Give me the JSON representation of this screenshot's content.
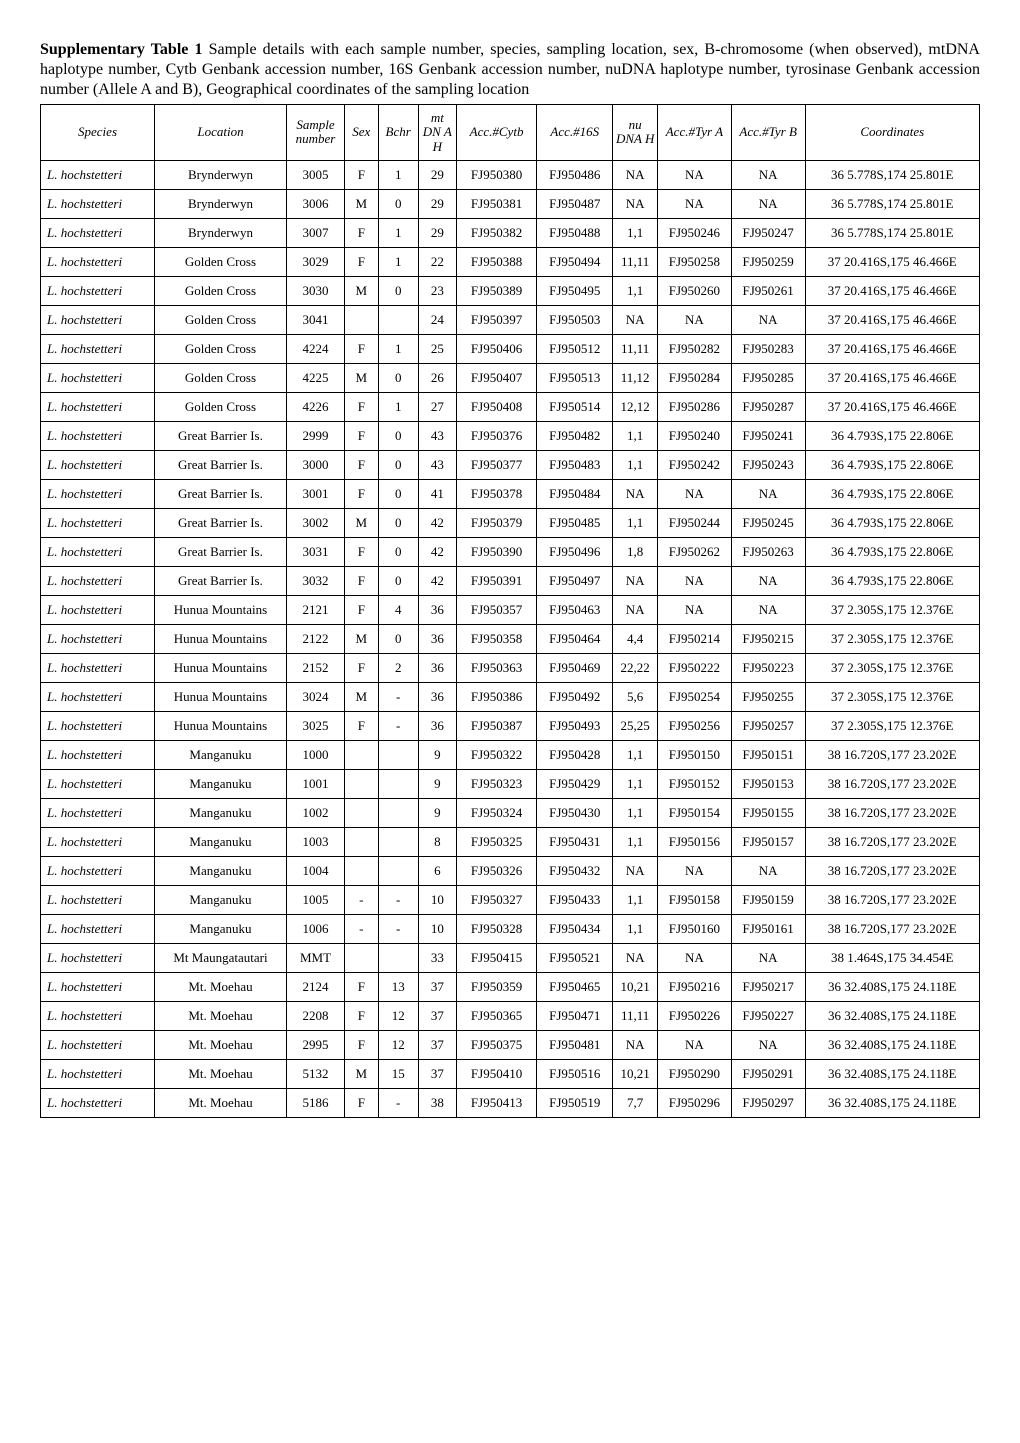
{
  "caption": {
    "title": "Supplementary Table 1",
    "body": " Sample details with each sample number, species, sampling location, sex, B-chromosome (when observed), mtDNA haplotype number, Cytb Genbank accession number, 16S Genbank accession number, nuDNA haplotype number, tyrosinase Genbank accession number (Allele A and B), Geographical coordinates of the sampling location"
  },
  "columns": [
    "Species",
    "Location",
    "Sample number",
    "Sex",
    "Bchr",
    "mt DN A H",
    "Acc.#Cytb",
    "Acc.#16S",
    "nu DNA H",
    "Acc.#Tyr A",
    "Acc.#Tyr B",
    "Coordinates"
  ],
  "rows": [
    [
      "L. hochstetteri",
      "Brynderwyn",
      "3005",
      "F",
      "1",
      "29",
      "FJ950380",
      "FJ950486",
      "NA",
      "NA",
      "NA",
      "36 5.778S,174 25.801E"
    ],
    [
      "L. hochstetteri",
      "Brynderwyn",
      "3006",
      "M",
      "0",
      "29",
      "FJ950381",
      "FJ950487",
      "NA",
      "NA",
      "NA",
      "36 5.778S,174 25.801E"
    ],
    [
      "L. hochstetteri",
      "Brynderwyn",
      "3007",
      "F",
      "1",
      "29",
      "FJ950382",
      "FJ950488",
      "1,1",
      "FJ950246",
      "FJ950247",
      "36 5.778S,174 25.801E"
    ],
    [
      "L. hochstetteri",
      "Golden Cross",
      "3029",
      "F",
      "1",
      "22",
      "FJ950388",
      "FJ950494",
      "11,11",
      "FJ950258",
      "FJ950259",
      "37 20.416S,175 46.466E"
    ],
    [
      "L. hochstetteri",
      "Golden Cross",
      "3030",
      "M",
      "0",
      "23",
      "FJ950389",
      "FJ950495",
      "1,1",
      "FJ950260",
      "FJ950261",
      "37 20.416S,175 46.466E"
    ],
    [
      "L. hochstetteri",
      "Golden Cross",
      "3041",
      "",
      "",
      "24",
      "FJ950397",
      "FJ950503",
      "NA",
      "NA",
      "NA",
      "37 20.416S,175 46.466E"
    ],
    [
      "L. hochstetteri",
      "Golden Cross",
      "4224",
      "F",
      "1",
      "25",
      "FJ950406",
      "FJ950512",
      "11,11",
      "FJ950282",
      "FJ950283",
      "37 20.416S,175 46.466E"
    ],
    [
      "L. hochstetteri",
      "Golden Cross",
      "4225",
      "M",
      "0",
      "26",
      "FJ950407",
      "FJ950513",
      "11,12",
      "FJ950284",
      "FJ950285",
      "37 20.416S,175 46.466E"
    ],
    [
      "L. hochstetteri",
      "Golden Cross",
      "4226",
      "F",
      "1",
      "27",
      "FJ950408",
      "FJ950514",
      "12,12",
      "FJ950286",
      "FJ950287",
      "37 20.416S,175 46.466E"
    ],
    [
      "L. hochstetteri",
      "Great Barrier Is.",
      "2999",
      "F",
      "0",
      "43",
      "FJ950376",
      "FJ950482",
      "1,1",
      "FJ950240",
      "FJ950241",
      "36 4.793S,175 22.806E"
    ],
    [
      "L. hochstetteri",
      "Great Barrier Is.",
      "3000",
      "F",
      "0",
      "43",
      "FJ950377",
      "FJ950483",
      "1,1",
      "FJ950242",
      "FJ950243",
      "36 4.793S,175 22.806E"
    ],
    [
      "L. hochstetteri",
      "Great Barrier Is.",
      "3001",
      "F",
      "0",
      "41",
      "FJ950378",
      "FJ950484",
      "NA",
      "NA",
      "NA",
      "36 4.793S,175 22.806E"
    ],
    [
      "L. hochstetteri",
      "Great Barrier Is.",
      "3002",
      "M",
      "0",
      "42",
      "FJ950379",
      "FJ950485",
      "1,1",
      "FJ950244",
      "FJ950245",
      "36 4.793S,175 22.806E"
    ],
    [
      "L. hochstetteri",
      "Great Barrier Is.",
      "3031",
      "F",
      "0",
      "42",
      "FJ950390",
      "FJ950496",
      "1,8",
      "FJ950262",
      "FJ950263",
      "36 4.793S,175 22.806E"
    ],
    [
      "L. hochstetteri",
      "Great Barrier Is.",
      "3032",
      "F",
      "0",
      "42",
      "FJ950391",
      "FJ950497",
      "NA",
      "NA",
      "NA",
      "36 4.793S,175 22.806E"
    ],
    [
      "L. hochstetteri",
      "Hunua Mountains",
      "2121",
      "F",
      "4",
      "36",
      "FJ950357",
      "FJ950463",
      "NA",
      "NA",
      "NA",
      "37 2.305S,175 12.376E"
    ],
    [
      "L. hochstetteri",
      "Hunua Mountains",
      "2122",
      "M",
      "0",
      "36",
      "FJ950358",
      "FJ950464",
      "4,4",
      "FJ950214",
      "FJ950215",
      "37 2.305S,175 12.376E"
    ],
    [
      "L. hochstetteri",
      "Hunua Mountains",
      "2152",
      "F",
      "2",
      "36",
      "FJ950363",
      "FJ950469",
      "22,22",
      "FJ950222",
      "FJ950223",
      "37 2.305S,175 12.376E"
    ],
    [
      "L. hochstetteri",
      "Hunua Mountains",
      "3024",
      "M",
      "-",
      "36",
      "FJ950386",
      "FJ950492",
      "5,6",
      "FJ950254",
      "FJ950255",
      "37 2.305S,175 12.376E"
    ],
    [
      "L. hochstetteri",
      "Hunua Mountains",
      "3025",
      "F",
      "-",
      "36",
      "FJ950387",
      "FJ950493",
      "25,25",
      "FJ950256",
      "FJ950257",
      "37 2.305S,175 12.376E"
    ],
    [
      "L. hochstetteri",
      "Manganuku",
      "1000",
      "",
      "",
      "9",
      "FJ950322",
      "FJ950428",
      "1,1",
      "FJ950150",
      "FJ950151",
      "38 16.720S,177 23.202E"
    ],
    [
      "L. hochstetteri",
      "Manganuku",
      "1001",
      "",
      "",
      "9",
      "FJ950323",
      "FJ950429",
      "1,1",
      "FJ950152",
      "FJ950153",
      "38 16.720S,177 23.202E"
    ],
    [
      "L. hochstetteri",
      "Manganuku",
      "1002",
      "",
      "",
      "9",
      "FJ950324",
      "FJ950430",
      "1,1",
      "FJ950154",
      "FJ950155",
      "38 16.720S,177 23.202E"
    ],
    [
      "L. hochstetteri",
      "Manganuku",
      "1003",
      "",
      "",
      "8",
      "FJ950325",
      "FJ950431",
      "1,1",
      "FJ950156",
      "FJ950157",
      "38 16.720S,177 23.202E"
    ],
    [
      "L. hochstetteri",
      "Manganuku",
      "1004",
      "",
      "",
      "6",
      "FJ950326",
      "FJ950432",
      "NA",
      "NA",
      "NA",
      "38 16.720S,177 23.202E"
    ],
    [
      "L. hochstetteri",
      "Manganuku",
      "1005",
      "-",
      "-",
      "10",
      "FJ950327",
      "FJ950433",
      "1,1",
      "FJ950158",
      "FJ950159",
      "38 16.720S,177 23.202E"
    ],
    [
      "L. hochstetteri",
      "Manganuku",
      "1006",
      "-",
      "-",
      "10",
      "FJ950328",
      "FJ950434",
      "1,1",
      "FJ950160",
      "FJ950161",
      "38 16.720S,177 23.202E"
    ],
    [
      "L. hochstetteri",
      "Mt Maungatautari",
      "MMT",
      "",
      "",
      "33",
      "FJ950415",
      "FJ950521",
      "NA",
      "NA",
      "NA",
      "38 1.464S,175 34.454E"
    ],
    [
      "L. hochstetteri",
      "Mt. Moehau",
      "2124",
      "F",
      "13",
      "37",
      "FJ950359",
      "FJ950465",
      "10,21",
      "FJ950216",
      "FJ950217",
      "36 32.408S,175 24.118E"
    ],
    [
      "L. hochstetteri",
      "Mt. Moehau",
      "2208",
      "F",
      "12",
      "37",
      "FJ950365",
      "FJ950471",
      "11,11",
      "FJ950226",
      "FJ950227",
      "36 32.408S,175 24.118E"
    ],
    [
      "L. hochstetteri",
      "Mt. Moehau",
      "2995",
      "F",
      "12",
      "37",
      "FJ950375",
      "FJ950481",
      "NA",
      "NA",
      "NA",
      "36 32.408S,175 24.118E"
    ],
    [
      "L. hochstetteri",
      "Mt. Moehau",
      "5132",
      "M",
      "15",
      "37",
      "FJ950410",
      "FJ950516",
      "10,21",
      "FJ950290",
      "FJ950291",
      "36 32.408S,175 24.118E"
    ],
    [
      "L. hochstetteri",
      "Mt. Moehau",
      "5186",
      "F",
      "-",
      "38",
      "FJ950413",
      "FJ950519",
      "7,7",
      "FJ950296",
      "FJ950297",
      "36 32.408S,175 24.118E"
    ]
  ]
}
